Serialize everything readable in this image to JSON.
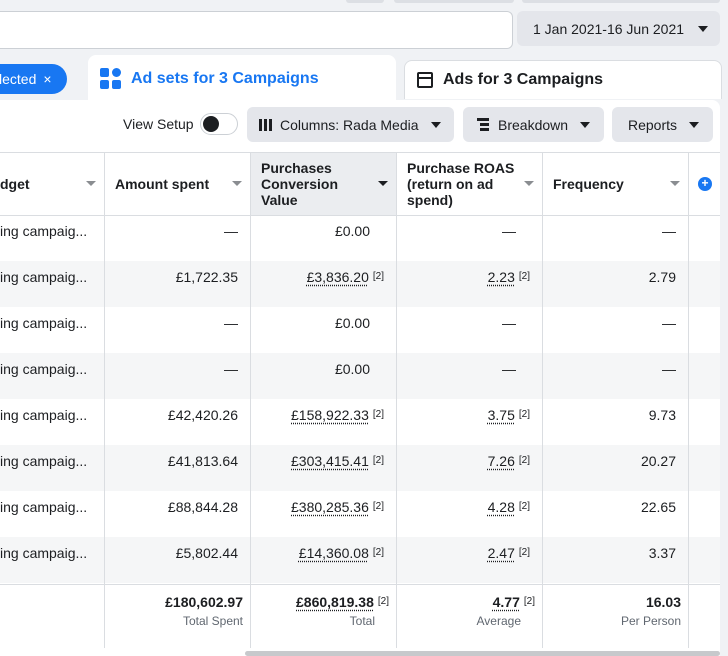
{
  "date_range": {
    "label": "1 Jan 2021-16 Jun 2021"
  },
  "filter": {
    "selected_label": "lected"
  },
  "tabs": [
    {
      "label": "Ad sets for 3 Campaigns",
      "active": true
    },
    {
      "label": "Ads for 3 Campaigns",
      "active": false
    }
  ],
  "toolbar": {
    "view_setup": "View Setup",
    "columns": "Columns: Rada Media",
    "breakdown": "Breakdown",
    "reports": "Reports"
  },
  "table": {
    "columns": [
      {
        "label": "dget"
      },
      {
        "label": "Amount spent"
      },
      {
        "label": "Purchases Conversion Value"
      },
      {
        "label": "Purchase ROAS (return on ad spend)"
      },
      {
        "label": "Frequency"
      }
    ],
    "rows": [
      {
        "name": "ing campaig...",
        "amount": "—",
        "value": "£0.00",
        "value_sup": "",
        "roas": "—",
        "roas_sup": "",
        "frequency": "—"
      },
      {
        "name": "ing campaig...",
        "amount": "£1,722.35",
        "value": "£3,836.20",
        "value_sup": "[2]",
        "roas": "2.23",
        "roas_sup": "[2]",
        "frequency": "2.79"
      },
      {
        "name": "ing campaig...",
        "amount": "—",
        "value": "£0.00",
        "value_sup": "",
        "roas": "—",
        "roas_sup": "",
        "frequency": "—"
      },
      {
        "name": "ing campaig...",
        "amount": "—",
        "value": "£0.00",
        "value_sup": "",
        "roas": "—",
        "roas_sup": "",
        "frequency": "—"
      },
      {
        "name": "ing campaig...",
        "amount": "£42,420.26",
        "value": "£158,922.33",
        "value_sup": "[2]",
        "roas": "3.75",
        "roas_sup": "[2]",
        "frequency": "9.73"
      },
      {
        "name": "ing campaig...",
        "amount": "£41,813.64",
        "value": "£303,415.41",
        "value_sup": "[2]",
        "roas": "7.26",
        "roas_sup": "[2]",
        "frequency": "20.27"
      },
      {
        "name": "ing campaig...",
        "amount": "£88,844.28",
        "value": "£380,285.36",
        "value_sup": "[2]",
        "roas": "4.28",
        "roas_sup": "[2]",
        "frequency": "22.65"
      },
      {
        "name": "ing campaig...",
        "amount": "£5,802.44",
        "value": "£14,360.08",
        "value_sup": "[2]",
        "roas": "2.47",
        "roas_sup": "[2]",
        "frequency": "3.37"
      }
    ],
    "totals": {
      "amount": "£180,602.97",
      "amount_label": "Total Spent",
      "value": "£860,819.38",
      "value_sup": "[2]",
      "value_label": "Total",
      "roas": "4.77",
      "roas_sup": "[2]",
      "roas_label": "Average",
      "frequency": "16.03",
      "frequency_label": "Per Person"
    }
  },
  "colors": {
    "accent": "#1877f2",
    "bg": "#f0f2f5"
  },
  "icons": {
    "selected_clear": "×",
    "add_column": "+"
  }
}
